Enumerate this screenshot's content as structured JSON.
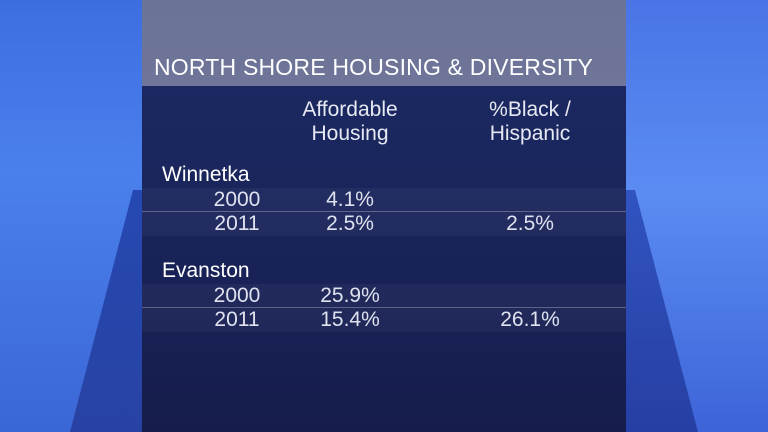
{
  "title": "NORTH SHORE HOUSING & DIVERSITY",
  "columns": {
    "affordable": [
      "Affordable",
      "Housing"
    ],
    "black_hispanic": [
      "%Black /",
      "Hispanic"
    ]
  },
  "cities": [
    {
      "name": "Winnetka",
      "rows": [
        {
          "year": "2000",
          "affordable": "4.1%",
          "black_hispanic": ""
        },
        {
          "year": "2011",
          "affordable": "2.5%",
          "black_hispanic": "2.5%"
        }
      ]
    },
    {
      "name": "Evanston",
      "rows": [
        {
          "year": "2000",
          "affordable": "25.9%",
          "black_hispanic": ""
        },
        {
          "year": "2011",
          "affordable": "15.4%",
          "black_hispanic": "26.1%"
        }
      ]
    }
  ]
}
